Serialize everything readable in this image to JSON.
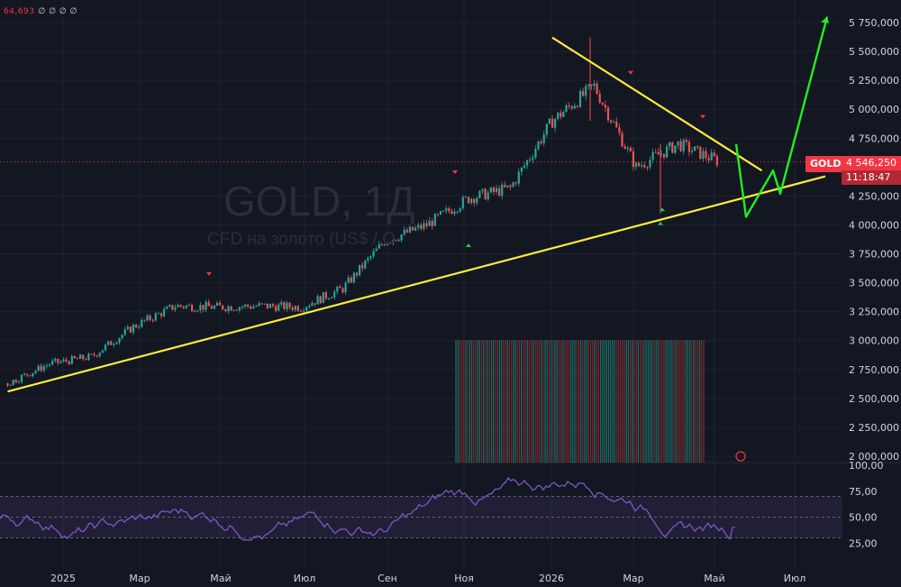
{
  "symbol_watermark": {
    "title": "GOLD, 1Д",
    "subtitle": "CFD на золото (US$ / O"
  },
  "header": {
    "indicator_value": "64,693",
    "indicator_markers": "∅ ∅ ∅ ∅"
  },
  "price_scale": {
    "labels": [
      "5 750,000",
      "5 500,000",
      "5 250,000",
      "5 000,000",
      "4 750,000",
      "4 250,000",
      "4 000,000",
      "3 750,000",
      "3 500,000",
      "3 250,000",
      "3 000,000",
      "2 750,000",
      "2 500,000",
      "2 250,000",
      "2 000,000"
    ],
    "values": [
      5750,
      5500,
      5250,
      5000,
      4750,
      4250,
      4000,
      3750,
      3500,
      3250,
      3000,
      2750,
      2500,
      2250,
      2000
    ],
    "current_price": "4 546,250",
    "current_price_value": 4546.25,
    "countdown": "11:18:47",
    "symbol_tag": "GOLD"
  },
  "rsi_scale": {
    "labels": [
      "100,00",
      "75,00",
      "50,00",
      "25,00"
    ],
    "values": [
      100,
      75,
      50,
      25
    ]
  },
  "time_axis": {
    "labels": [
      "2025",
      "Мар",
      "Май",
      "Июл",
      "Сен",
      "Ноя",
      "2026",
      "Мар",
      "Май",
      "Июл"
    ]
  },
  "colors": {
    "background": "#131722",
    "up": "#26a69a",
    "down": "#ef5350",
    "trendline": "#ffeb3b",
    "projection": "#22ee22",
    "rsi": "#7e57c2",
    "price_tag": "#f23645"
  },
  "chart_data": {
    "type": "candlestick",
    "title": "GOLD, 1Д",
    "ylim": [
      1950,
      5850
    ],
    "closes": [
      {
        "x": "2024-12",
        "y": 2630
      },
      {
        "x": "2025-01",
        "y": 2800
      },
      {
        "x": "2025-02",
        "y": 2860
      },
      {
        "x": "2025-03",
        "y": 3120
      },
      {
        "x": "2025-04",
        "y": 3300
      },
      {
        "x": "2025-05",
        "y": 3290
      },
      {
        "x": "2025-06",
        "y": 3300
      },
      {
        "x": "2025-07",
        "y": 3290
      },
      {
        "x": "2025-08",
        "y": 3450
      },
      {
        "x": "2025-09",
        "y": 3860
      },
      {
        "x": "2025-10",
        "y": 4000
      },
      {
        "x": "2025-11",
        "y": 4230
      },
      {
        "x": "2025-12",
        "y": 4320
      },
      {
        "x": "2026-01",
        "y": 4900
      },
      {
        "x": "2026-02",
        "y": 5200
      },
      {
        "x": "2026-03",
        "y": 4500
      },
      {
        "x": "2026-04",
        "y": 4700
      },
      {
        "x": "2026-05",
        "y": 4546
      }
    ],
    "trendlines": [
      {
        "name": "support",
        "from": {
          "x": "2024-12",
          "y": 2560
        },
        "to": {
          "x": "2026-07",
          "y": 4420
        }
      },
      {
        "name": "resistance",
        "from": {
          "x": "2026-01",
          "y": 5620
        },
        "to": {
          "x": "2026-06",
          "y": 4470
        }
      }
    ],
    "projection": [
      4700,
      4070,
      4470,
      4270,
      5800
    ],
    "rsi": {
      "levels": [
        70,
        30
      ],
      "last": 40
    }
  }
}
